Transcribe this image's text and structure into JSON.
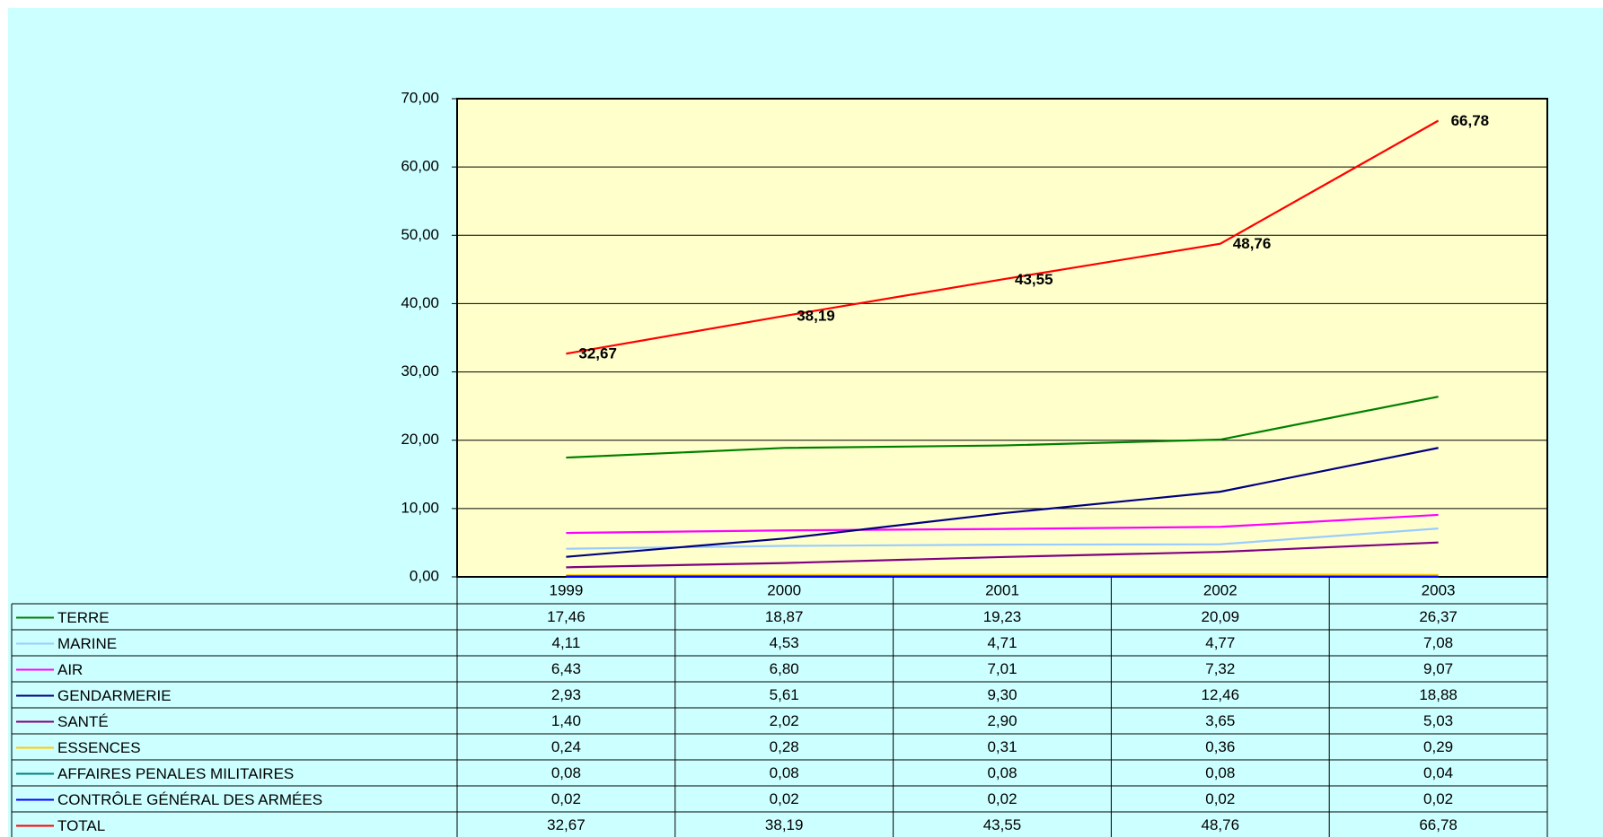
{
  "chart_data": {
    "type": "line",
    "categories": [
      "1999",
      "2000",
      "2001",
      "2002",
      "2003"
    ],
    "series": [
      {
        "name": "TERRE",
        "color": "#008000",
        "values": [
          17.46,
          18.87,
          19.23,
          20.09,
          26.37
        ],
        "value_labels": [
          "17,46",
          "18,87",
          "19,23",
          "20,09",
          "26,37"
        ]
      },
      {
        "name": "MARINE",
        "color": "#99ccff",
        "values": [
          4.11,
          4.53,
          4.71,
          4.77,
          7.08
        ],
        "value_labels": [
          "4,11",
          "4,53",
          "4,71",
          "4,77",
          "7,08"
        ]
      },
      {
        "name": "AIR",
        "color": "#ff00ff",
        "values": [
          6.43,
          6.8,
          7.01,
          7.32,
          9.07
        ],
        "value_labels": [
          "6,43",
          "6,80",
          "7,01",
          "7,32",
          "9,07"
        ]
      },
      {
        "name": "GENDARMERIE",
        "color": "#000080",
        "values": [
          2.93,
          5.61,
          9.3,
          12.46,
          18.88
        ],
        "value_labels": [
          "2,93",
          "5,61",
          "9,30",
          "12,46",
          "18,88"
        ]
      },
      {
        "name": "SANTÉ",
        "color": "#800080",
        "values": [
          1.4,
          2.02,
          2.9,
          3.65,
          5.03
        ],
        "value_labels": [
          "1,40",
          "2,02",
          "2,90",
          "3,65",
          "5,03"
        ]
      },
      {
        "name": "ESSENCES",
        "color": "#ffcc00",
        "values": [
          0.24,
          0.28,
          0.31,
          0.36,
          0.29
        ],
        "value_labels": [
          "0,24",
          "0,28",
          "0,31",
          "0,36",
          "0,29"
        ]
      },
      {
        "name": "AFFAIRES PENALES MILITAIRES",
        "color": "#008080",
        "values": [
          0.08,
          0.08,
          0.08,
          0.08,
          0.04
        ],
        "value_labels": [
          "0,08",
          "0,08",
          "0,08",
          "0,08",
          "0,04"
        ]
      },
      {
        "name": "CONTRÔLE GÉNÉRAL DES ARMÉES",
        "color": "#0000ff",
        "values": [
          0.02,
          0.02,
          0.02,
          0.02,
          0.02
        ],
        "value_labels": [
          "0,02",
          "0,02",
          "0,02",
          "0,02",
          "0,02"
        ]
      },
      {
        "name": "TOTAL",
        "color": "#ff0000",
        "values": [
          32.67,
          38.19,
          43.55,
          48.76,
          66.78
        ],
        "value_labels": [
          "32,67",
          "38,19",
          "43,55",
          "48,76",
          "66,78"
        ],
        "data_labels": true
      }
    ],
    "ylim": [
      0,
      70
    ],
    "yticks": [
      {
        "value": 0,
        "label": "0,00"
      },
      {
        "value": 10,
        "label": "10,00"
      },
      {
        "value": 20,
        "label": "20,00"
      },
      {
        "value": 30,
        "label": "30,00"
      },
      {
        "value": 40,
        "label": "40,00"
      },
      {
        "value": 50,
        "label": "50,00"
      },
      {
        "value": 60,
        "label": "60,00"
      },
      {
        "value": 70,
        "label": "70,00"
      }
    ],
    "grid": true,
    "legend": "table"
  }
}
